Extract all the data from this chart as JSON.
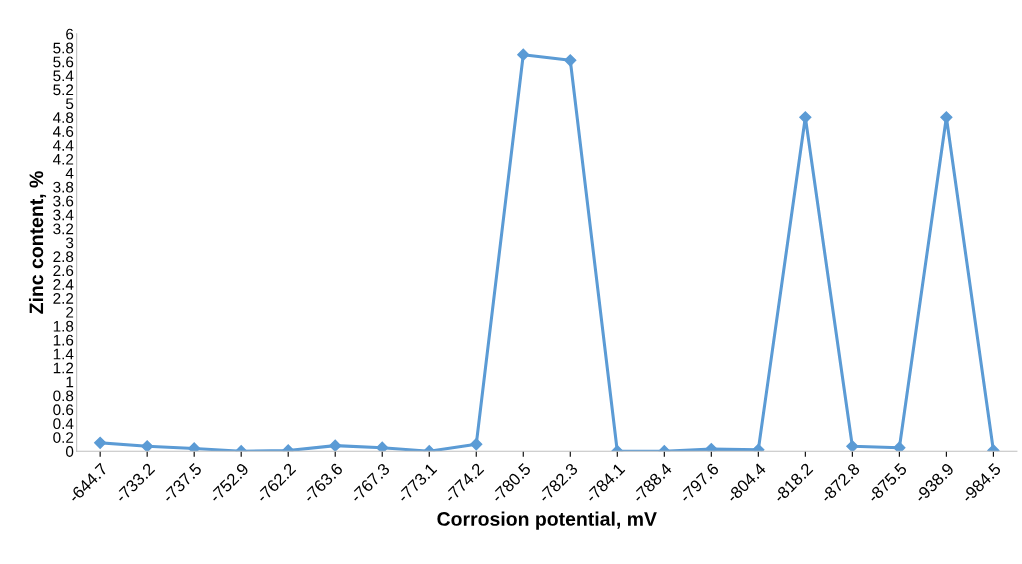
{
  "chart_data": {
    "type": "line",
    "xlabel": "Corrosion potential, mV",
    "ylabel": "Zinc content, %",
    "categories": [
      "-644.7",
      "-733.2",
      "-737.5",
      "-752.9",
      "-762.2",
      "-763.6",
      "-767.3",
      "-773.1",
      "-774.2",
      "-780.5",
      "-782.3",
      "-784.1",
      "-788.4",
      "-797.6",
      "-804.4",
      "-818.2",
      "-872.8",
      "-875.5",
      "-938.9",
      "-984.5"
    ],
    "series": [
      {
        "color": "#5b9bd5",
        "values": [
          0.12,
          0.07,
          0.04,
          0,
          0.01,
          0.08,
          0.05,
          0,
          0.1,
          5.7,
          5.62,
          0,
          0,
          0.03,
          0.02,
          4.8,
          0.07,
          0.05,
          4.8,
          0.01
        ]
      }
    ],
    "ylim": [
      0,
      6
    ],
    "yticks": [
      0,
      0.2,
      0.4,
      0.6,
      0.8,
      1,
      1.2,
      1.4,
      1.6,
      1.8,
      2,
      2.2,
      2.4,
      2.6,
      2.8,
      3,
      3.2,
      3.4,
      3.6,
      3.8,
      4,
      4.2,
      4.4,
      4.6,
      4.8,
      5,
      5.2,
      5.4,
      5.6,
      5.8,
      6
    ],
    "grid": false,
    "marker": "diamond",
    "line_style": "solid"
  }
}
